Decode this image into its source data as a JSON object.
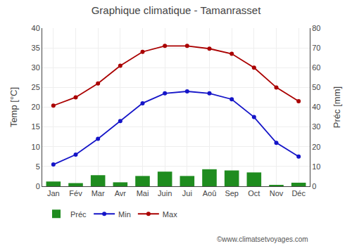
{
  "chart_data": {
    "type": "bar",
    "title": "Graphique climatique - Tamanrasset",
    "categories": [
      "Jan",
      "Fév",
      "Mar",
      "Avr",
      "Mai",
      "Juin",
      "Jui",
      "Aoû",
      "Sep",
      "Oct",
      "Nov",
      "Déc"
    ],
    "series": [
      {
        "name": "Préc",
        "type": "bar",
        "color": "#1f8c1f",
        "values": [
          1.2,
          0.8,
          2.8,
          1.0,
          2.6,
          3.7,
          2.6,
          4.3,
          4.0,
          3.5,
          0.2,
          0.9
        ]
      },
      {
        "name": "Min",
        "type": "line",
        "marker": "circle",
        "color": "#1515c8",
        "values": [
          5.5,
          8.0,
          12.0,
          16.5,
          21.0,
          23.5,
          24.0,
          23.5,
          22.0,
          17.5,
          11.0,
          7.5
        ]
      },
      {
        "name": "Max",
        "type": "line",
        "marker": "circle",
        "color": "#aa0000",
        "values": [
          20.4,
          22.5,
          26.0,
          30.5,
          34.0,
          35.5,
          35.5,
          34.8,
          33.5,
          30.0,
          25.0,
          21.5
        ]
      }
    ],
    "ylabel": "Temp [°C]",
    "y2label": "Préc [mm]",
    "ylim": [
      0,
      40
    ],
    "yticks": [
      0,
      5,
      10,
      15,
      20,
      25,
      30,
      35,
      40
    ],
    "y2lim": [
      0,
      80
    ],
    "y2ticks": [
      0,
      10,
      20,
      30,
      40,
      50,
      60,
      70,
      80
    ],
    "grid": true,
    "legend": "bottom",
    "annotations": [
      "©www.climatsetvoyages.com"
    ]
  }
}
